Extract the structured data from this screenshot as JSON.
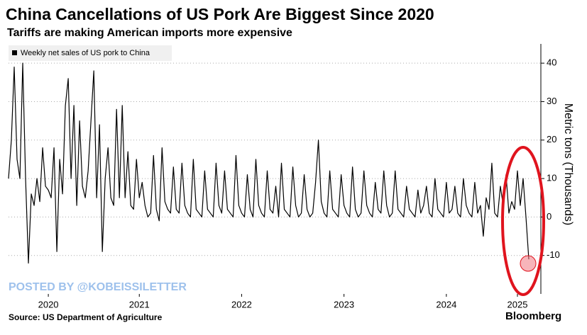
{
  "chart_data": {
    "type": "line",
    "title": "China Cancellations of US Pork Are Biggest Since 2020",
    "subtitle": "Tariffs are making American imports more expensive",
    "y_label": "Metric tons (Thousands)",
    "source": "Source: US Department of Agriculture",
    "brand": "Bloomberg",
    "watermark": "POSTED BY @KOBEISSILETTER",
    "series": [
      {
        "name": "Weekly net sales of US pork to China",
        "color": "#000000",
        "values": [
          10,
          20,
          39,
          15,
          10,
          40,
          10,
          -12,
          6,
          3,
          10,
          4,
          18,
          8,
          7,
          5,
          18,
          -9,
          15,
          6,
          29,
          36,
          10,
          29,
          3,
          25,
          8,
          5,
          12,
          25,
          38,
          5,
          24,
          -9,
          10,
          18,
          5,
          3,
          28,
          5,
          29,
          5,
          17,
          3,
          2,
          15,
          5,
          9,
          3,
          0,
          1,
          16,
          2,
          -1,
          18,
          4,
          2,
          1,
          13,
          2,
          1,
          14,
          3,
          1,
          0,
          15,
          2,
          1,
          0,
          12,
          2,
          1,
          0,
          14,
          3,
          1,
          12,
          2,
          1,
          0,
          16,
          3,
          1,
          0,
          11,
          2,
          0,
          15,
          3,
          1,
          0,
          12,
          2,
          1,
          8,
          0,
          14,
          2,
          1,
          0,
          13,
          3,
          0,
          1,
          11,
          2,
          0,
          1,
          9,
          20,
          4,
          1,
          0,
          12,
          2,
          1,
          0,
          11,
          3,
          1,
          0,
          13,
          2,
          0,
          1,
          12,
          3,
          1,
          0,
          9,
          2,
          1,
          12,
          3,
          0,
          1,
          12,
          2,
          1,
          0,
          8,
          2,
          1,
          0,
          7,
          1,
          3,
          8,
          1,
          0,
          10,
          2,
          1,
          0,
          9,
          1,
          2,
          8,
          1,
          0,
          10,
          3,
          1,
          0,
          9,
          1,
          3,
          -5,
          5,
          2,
          14,
          1,
          0,
          8,
          3,
          11,
          1,
          4,
          2,
          12,
          3,
          10,
          0,
          -11
        ]
      }
    ],
    "xlim": [
      0,
      183
    ],
    "xticks": [
      {
        "value": 14,
        "label": "2020"
      },
      {
        "value": 46,
        "label": "2021"
      },
      {
        "value": 82,
        "label": "2022"
      },
      {
        "value": 118,
        "label": "2023"
      },
      {
        "value": 154,
        "label": "2024"
      },
      {
        "value": 179,
        "label": "2025"
      }
    ],
    "ylim": [
      -20,
      45
    ],
    "yticks": [
      -10,
      0,
      10,
      20,
      30,
      40
    ],
    "grid": true
  }
}
